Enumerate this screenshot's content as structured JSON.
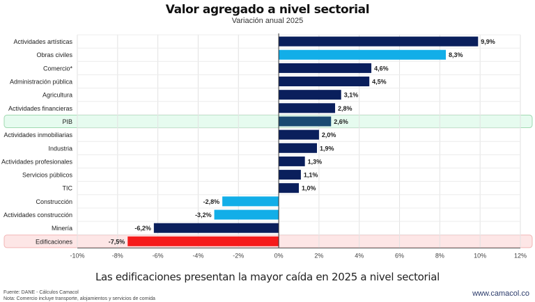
{
  "header": {
    "title": "Valor agregado a nivel sectorial",
    "subtitle": "Variación anual 2025"
  },
  "footer": {
    "caption": "Las edificaciones presentan la mayor caída en 2025 a nivel sectorial",
    "source": "Fuente: DANE - Cálculos Camacol",
    "note": "Nota: Comercio incluye transporte, alojamientos y servicios de comida",
    "website": "www.camacol.co"
  },
  "colors": {
    "dark_navy": "#0a1f5c",
    "light_blue": "#12aee8",
    "pib_bar": "#1a4a72",
    "red": "#f51c1c",
    "pib_highlight_bg": "#e6fbef",
    "pib_highlight_border": "#9fd8b0",
    "edif_highlight_bg": "#fde6e6",
    "edif_highlight_border": "#f2b5b5"
  },
  "chart_data": {
    "type": "bar",
    "orientation": "horizontal",
    "title": "Valor agregado a nivel sectorial",
    "subtitle": "Variación anual 2025",
    "xlabel": "",
    "ylabel": "",
    "xlim": [
      -10,
      12
    ],
    "x_ticks": [
      -10,
      -8,
      -6,
      -4,
      -2,
      0,
      2,
      4,
      6,
      8,
      10,
      12
    ],
    "x_tick_labels": [
      "-10%",
      "-8%",
      "-6%",
      "-4%",
      "-2%",
      "0%",
      "2%",
      "4%",
      "6%",
      "8%",
      "10%",
      "12%"
    ],
    "grid": true,
    "categories": [
      "Actividades artísticas",
      "Obras civiles",
      "Comercio*",
      "Administración pública",
      "Agricultura",
      "Actividades financieras",
      "PIB",
      "Actividades inmobiliarias",
      "Industria",
      "Actividades profesionales",
      "Servicios públicos",
      "TIC",
      "Construcción",
      "Actividades construcción",
      "Minería",
      "Edificaciones"
    ],
    "values": [
      9.9,
      8.3,
      4.6,
      4.5,
      3.1,
      2.8,
      2.6,
      2.0,
      1.9,
      1.3,
      1.1,
      1.0,
      -2.8,
      -3.2,
      -6.2,
      -7.5
    ],
    "value_labels": [
      "9,9%",
      "8,3%",
      "4,6%",
      "4,5%",
      "3,1%",
      "2,8%",
      "2,6%",
      "2,0%",
      "1,9%",
      "1,3%",
      "1,1%",
      "1,0%",
      "-2,8%",
      "-3,2%",
      "-6,2%",
      "-7,5%"
    ],
    "bar_color_keys": [
      "dark_navy",
      "light_blue",
      "dark_navy",
      "dark_navy",
      "dark_navy",
      "dark_navy",
      "pib_bar",
      "dark_navy",
      "dark_navy",
      "dark_navy",
      "dark_navy",
      "dark_navy",
      "light_blue",
      "light_blue",
      "dark_navy",
      "red"
    ],
    "highlighted_rows": [
      {
        "category": "PIB",
        "style": "green"
      },
      {
        "category": "Edificaciones",
        "style": "red"
      }
    ]
  }
}
